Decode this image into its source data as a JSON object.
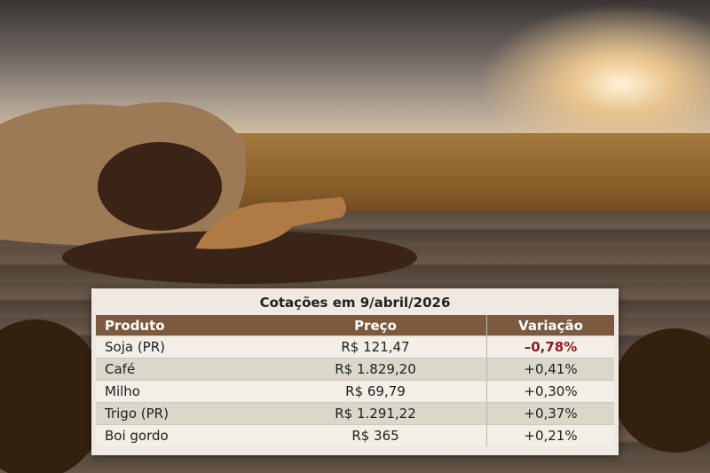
{
  "table": {
    "title": "Cotações em 9/abril/2026",
    "headers": [
      "Produto",
      "Preço",
      "Variação"
    ],
    "rows": [
      [
        "Soja (PR)",
        "R$ 121,47",
        "–0,78%"
      ],
      [
        "Café",
        "R$ 1.829,20",
        "+0,41%"
      ],
      [
        "Milho",
        "R$ 69,79",
        "+0,30%"
      ],
      [
        "Trigo (PR)",
        "R$ 1.291,22",
        "+0,37%"
      ],
      [
        "Boi gordo",
        "R$ 365",
        "+0,21%"
      ]
    ]
  }
}
